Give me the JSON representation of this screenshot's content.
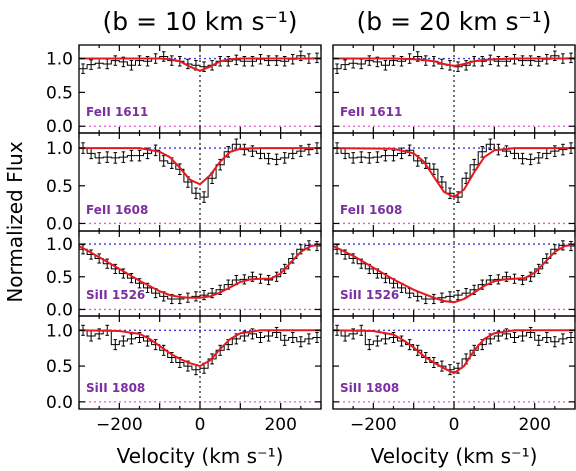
{
  "figure": {
    "titles": [
      "(b = 10 km s⁻¹)",
      "(b = 20 km s⁻¹)"
    ],
    "xlabel": "Velocity (km s⁻¹)",
    "ylabel": "Normalized Flux"
  },
  "chart_data": {
    "type": "line",
    "title": "",
    "xlabel": "Velocity (km s⁻¹)",
    "ylabel": "Normalized Flux",
    "xlim": [
      -300,
      300
    ],
    "ylim": [
      -0.1,
      1.2
    ],
    "x_ticks": [
      -200,
      0,
      200
    ],
    "y_ticks": [
      0.0,
      0.5,
      1.0
    ],
    "y_tick_labels": [
      "0.0",
      "0.5",
      "1.0"
    ],
    "colors": {
      "data": "#000000",
      "model": "#e8191e",
      "continuum_ref": "#3b3bd6",
      "zero_ref": "#e05ad0",
      "label": "#7b2fa0",
      "center_line": "#000000"
    },
    "columns": [
      {
        "title": "(b = 10 km s⁻¹)",
        "panels": [
          {
            "label": "FeII 1611",
            "data": {
              "x": [
                -290,
                -270,
                -250,
                -230,
                -210,
                -190,
                -170,
                -150,
                -130,
                -110,
                -90,
                -70,
                -50,
                -30,
                -10,
                10,
                30,
                50,
                70,
                90,
                110,
                130,
                150,
                170,
                190,
                210,
                230,
                250,
                270,
                290
              ],
              "y": [
                0.85,
                0.91,
                0.93,
                0.92,
                0.97,
                0.95,
                0.9,
                0.97,
                0.96,
                1.0,
                1.03,
                0.97,
                0.96,
                0.92,
                0.9,
                0.88,
                0.9,
                0.96,
                0.96,
                0.98,
                0.96,
                0.96,
                0.99,
                0.97,
                0.97,
                0.96,
                0.99,
                1.04,
                1.0,
                1.01
              ]
            },
            "model": {
              "x": [
                -300,
                -150,
                -100,
                -75,
                -50,
                -25,
                0,
                25,
                50,
                75,
                100,
                150,
                300
              ],
              "y": [
                1.0,
                1.0,
                1.0,
                0.99,
                0.96,
                0.88,
                0.82,
                0.88,
                0.96,
                0.99,
                1.0,
                1.0,
                1.0
              ]
            }
          },
          {
            "label": "FeII 1608",
            "data": {
              "x": [
                -290,
                -270,
                -250,
                -230,
                -210,
                -190,
                -170,
                -150,
                -130,
                -110,
                -90,
                -70,
                -50,
                -30,
                -10,
                10,
                30,
                50,
                70,
                90,
                110,
                130,
                150,
                170,
                190,
                210,
                230,
                250,
                270,
                290
              ],
              "y": [
                1.0,
                0.93,
                0.87,
                0.88,
                0.87,
                0.88,
                0.9,
                0.9,
                0.93,
                0.97,
                0.83,
                0.8,
                0.72,
                0.55,
                0.4,
                0.35,
                0.6,
                0.78,
                0.95,
                1.05,
                0.98,
                0.96,
                0.93,
                0.86,
                0.85,
                0.87,
                0.93,
                0.96,
                0.98,
                1.0
              ]
            },
            "model": {
              "x": [
                -300,
                -150,
                -100,
                -75,
                -50,
                -25,
                0,
                25,
                50,
                75,
                100,
                150,
                300
              ],
              "y": [
                1.0,
                1.0,
                0.95,
                0.88,
                0.74,
                0.58,
                0.52,
                0.64,
                0.82,
                0.95,
                0.99,
                1.0,
                1.0
              ]
            }
          },
          {
            "label": "SiII 1526",
            "data": {
              "x": [
                -290,
                -270,
                -250,
                -230,
                -210,
                -190,
                -170,
                -150,
                -130,
                -110,
                -90,
                -70,
                -50,
                -30,
                -10,
                10,
                30,
                50,
                70,
                90,
                110,
                130,
                150,
                170,
                190,
                210,
                230,
                250,
                270,
                290
              ],
              "y": [
                0.92,
                0.84,
                0.78,
                0.7,
                0.62,
                0.55,
                0.48,
                0.4,
                0.33,
                0.25,
                0.2,
                0.16,
                0.16,
                0.18,
                0.2,
                0.22,
                0.25,
                0.3,
                0.38,
                0.45,
                0.46,
                0.5,
                0.47,
                0.45,
                0.5,
                0.62,
                0.78,
                0.92,
                0.98,
                0.97
              ]
            },
            "model": {
              "x": [
                -300,
                -250,
                -200,
                -150,
                -100,
                -75,
                -50,
                -25,
                0,
                25,
                50,
                75,
                100,
                125,
                150,
                175,
                200,
                225,
                250,
                275,
                300
              ],
              "y": [
                0.97,
                0.8,
                0.62,
                0.44,
                0.28,
                0.22,
                0.19,
                0.18,
                0.18,
                0.2,
                0.26,
                0.34,
                0.42,
                0.46,
                0.47,
                0.47,
                0.55,
                0.72,
                0.88,
                0.97,
                0.99
              ]
            }
          },
          {
            "label": "SiII 1808",
            "data": {
              "x": [
                -290,
                -270,
                -250,
                -230,
                -210,
                -190,
                -170,
                -150,
                -130,
                -110,
                -90,
                -70,
                -50,
                -30,
                -10,
                10,
                30,
                50,
                70,
                90,
                110,
                130,
                150,
                170,
                190,
                210,
                230,
                250,
                270,
                290
              ],
              "y": [
                1.0,
                0.92,
                0.95,
                1.0,
                0.8,
                0.85,
                0.88,
                0.9,
                0.85,
                0.8,
                0.72,
                0.62,
                0.55,
                0.5,
                0.45,
                0.47,
                0.6,
                0.72,
                0.8,
                0.88,
                0.92,
                0.95,
                0.9,
                0.92,
                0.97,
                0.86,
                0.9,
                0.84,
                0.88,
                0.9
              ]
            },
            "model": {
              "x": [
                -300,
                -200,
                -150,
                -125,
                -100,
                -75,
                -50,
                -25,
                0,
                25,
                50,
                75,
                100,
                150,
                200,
                300
              ],
              "y": [
                1.0,
                0.99,
                0.95,
                0.88,
                0.78,
                0.68,
                0.6,
                0.54,
                0.5,
                0.58,
                0.74,
                0.88,
                0.96,
                1.0,
                1.0,
                1.0
              ]
            }
          }
        ]
      },
      {
        "title": "(b = 20 km s⁻¹)",
        "panels": [
          {
            "label": "FeII 1611",
            "data": {
              "x": [
                -290,
                -270,
                -250,
                -230,
                -210,
                -190,
                -170,
                -150,
                -130,
                -110,
                -90,
                -70,
                -50,
                -30,
                -10,
                10,
                30,
                50,
                70,
                90,
                110,
                130,
                150,
                170,
                190,
                210,
                230,
                250,
                270,
                290
              ],
              "y": [
                0.85,
                0.91,
                0.93,
                0.92,
                0.97,
                0.95,
                0.9,
                0.97,
                0.96,
                1.0,
                1.03,
                0.97,
                0.96,
                0.92,
                0.9,
                0.88,
                0.9,
                0.96,
                0.96,
                0.98,
                0.96,
                0.96,
                0.99,
                0.97,
                0.97,
                0.96,
                0.99,
                1.04,
                1.0,
                1.01
              ]
            },
            "model": {
              "x": [
                -300,
                -150,
                -100,
                -75,
                -50,
                -25,
                0,
                25,
                50,
                75,
                100,
                150,
                300
              ],
              "y": [
                1.0,
                1.0,
                0.99,
                0.98,
                0.96,
                0.92,
                0.89,
                0.92,
                0.96,
                0.98,
                0.99,
                1.0,
                1.0
              ]
            }
          },
          {
            "label": "FeII 1608",
            "data": {
              "x": [
                -290,
                -270,
                -250,
                -230,
                -210,
                -190,
                -170,
                -150,
                -130,
                -110,
                -90,
                -70,
                -50,
                -30,
                -10,
                10,
                30,
                50,
                70,
                90,
                110,
                130,
                150,
                170,
                190,
                210,
                230,
                250,
                270,
                290
              ],
              "y": [
                1.0,
                0.93,
                0.87,
                0.88,
                0.87,
                0.88,
                0.9,
                0.9,
                0.93,
                0.97,
                0.83,
                0.8,
                0.72,
                0.55,
                0.4,
                0.35,
                0.6,
                0.78,
                0.95,
                1.05,
                0.98,
                0.96,
                0.93,
                0.86,
                0.85,
                0.87,
                0.93,
                0.96,
                0.98,
                1.0
              ]
            },
            "model": {
              "x": [
                -300,
                -150,
                -100,
                -75,
                -50,
                -25,
                0,
                25,
                50,
                75,
                100,
                150,
                300
              ],
              "y": [
                1.0,
                0.99,
                0.93,
                0.82,
                0.62,
                0.42,
                0.35,
                0.45,
                0.68,
                0.88,
                0.97,
                1.0,
                1.0
              ]
            }
          },
          {
            "label": "SiII 1526",
            "data": {
              "x": [
                -290,
                -270,
                -250,
                -230,
                -210,
                -190,
                -170,
                -150,
                -130,
                -110,
                -90,
                -70,
                -50,
                -30,
                -10,
                10,
                30,
                50,
                70,
                90,
                110,
                130,
                150,
                170,
                190,
                210,
                230,
                250,
                270,
                290
              ],
              "y": [
                0.92,
                0.84,
                0.78,
                0.7,
                0.62,
                0.55,
                0.48,
                0.4,
                0.33,
                0.25,
                0.2,
                0.16,
                0.16,
                0.18,
                0.2,
                0.22,
                0.25,
                0.3,
                0.38,
                0.45,
                0.46,
                0.5,
                0.47,
                0.45,
                0.5,
                0.62,
                0.78,
                0.92,
                0.98,
                0.97
              ]
            },
            "model": {
              "x": [
                -300,
                -250,
                -200,
                -150,
                -100,
                -75,
                -50,
                -25,
                0,
                25,
                50,
                75,
                100,
                125,
                150,
                175,
                200,
                225,
                250,
                275,
                300
              ],
              "y": [
                0.97,
                0.82,
                0.64,
                0.46,
                0.3,
                0.24,
                0.18,
                0.13,
                0.11,
                0.16,
                0.26,
                0.36,
                0.43,
                0.46,
                0.47,
                0.48,
                0.56,
                0.72,
                0.88,
                0.97,
                0.99
              ]
            }
          },
          {
            "label": "SiII 1808",
            "data": {
              "x": [
                -290,
                -270,
                -250,
                -230,
                -210,
                -190,
                -170,
                -150,
                -130,
                -110,
                -90,
                -70,
                -50,
                -30,
                -10,
                10,
                30,
                50,
                70,
                90,
                110,
                130,
                150,
                170,
                190,
                210,
                230,
                250,
                270,
                290
              ],
              "y": [
                1.0,
                0.92,
                0.95,
                1.0,
                0.8,
                0.85,
                0.88,
                0.9,
                0.85,
                0.8,
                0.72,
                0.62,
                0.55,
                0.5,
                0.45,
                0.47,
                0.6,
                0.72,
                0.8,
                0.88,
                0.92,
                0.95,
                0.9,
                0.92,
                0.97,
                0.86,
                0.9,
                0.84,
                0.88,
                0.9
              ]
            },
            "model": {
              "x": [
                -300,
                -200,
                -150,
                -125,
                -100,
                -75,
                -50,
                -25,
                0,
                25,
                50,
                75,
                100,
                150,
                200,
                300
              ],
              "y": [
                1.0,
                0.99,
                0.94,
                0.86,
                0.76,
                0.64,
                0.55,
                0.47,
                0.4,
                0.5,
                0.72,
                0.88,
                0.96,
                1.0,
                1.0,
                1.0
              ]
            }
          }
        ]
      }
    ]
  }
}
